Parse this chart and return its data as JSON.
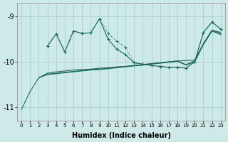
{
  "xlabel": "Humidex (Indice chaleur)",
  "background_color": "#ceeae8",
  "grid_color": "#aacfcc",
  "line_color": "#1a6b5a",
  "xlim": [
    -0.5,
    23.5
  ],
  "ylim": [
    -11.3,
    -8.7
  ],
  "yticks": [
    -11,
    -10,
    -9
  ],
  "xticks": [
    0,
    1,
    2,
    3,
    4,
    5,
    6,
    7,
    8,
    9,
    10,
    11,
    12,
    13,
    14,
    15,
    16,
    17,
    18,
    19,
    20,
    21,
    22,
    23
  ],
  "series": {
    "curve_x": [
      0,
      1,
      2,
      3,
      4,
      5,
      6,
      7,
      8,
      9,
      10,
      11,
      12,
      13,
      14,
      15,
      16,
      17,
      18,
      19,
      20,
      21,
      22,
      23
    ],
    "curve_y": [
      -11.05,
      -10.65,
      -10.35,
      -10.25,
      -10.22,
      -10.2,
      -10.18,
      -10.17,
      -10.16,
      -10.14,
      -10.13,
      -10.11,
      -10.1,
      -10.08,
      -10.06,
      -10.04,
      -10.02,
      -10.0,
      -9.98,
      -9.97,
      -9.96,
      -9.6,
      -9.3,
      -9.35
    ],
    "flat1_x": [
      2,
      3,
      4,
      5,
      6,
      7,
      8,
      9,
      10,
      11,
      12,
      13,
      14,
      15,
      16,
      17,
      18,
      19,
      20,
      21,
      22,
      23
    ],
    "flat1_y": [
      -10.35,
      -10.27,
      -10.25,
      -10.23,
      -10.21,
      -10.19,
      -10.17,
      -10.16,
      -10.14,
      -10.12,
      -10.1,
      -10.08,
      -10.06,
      -10.04,
      -10.02,
      -10.0,
      -9.98,
      -10.06,
      -9.98,
      -9.6,
      -9.3,
      -9.38
    ],
    "flat2_x": [
      2,
      3,
      4,
      5,
      6,
      7,
      8,
      9,
      10,
      11,
      12,
      13,
      14,
      15,
      16,
      17,
      18,
      19,
      20,
      21,
      22,
      23
    ],
    "flat2_y": [
      -10.35,
      -10.28,
      -10.26,
      -10.24,
      -10.22,
      -10.2,
      -10.18,
      -10.17,
      -10.15,
      -10.13,
      -10.11,
      -10.09,
      -10.07,
      -10.05,
      -10.03,
      -10.01,
      -9.99,
      -10.07,
      -10.0,
      -9.62,
      -9.32,
      -9.4
    ],
    "upper_dotted_x": [
      3,
      4,
      5,
      6,
      7,
      8,
      9,
      10,
      11,
      12,
      13,
      14,
      15,
      16,
      17,
      18,
      19,
      20,
      21,
      22,
      23
    ],
    "upper_dotted_y": [
      -9.65,
      -9.38,
      -9.78,
      -9.32,
      -9.37,
      -9.36,
      -9.05,
      -9.37,
      -9.55,
      -9.68,
      -10.02,
      -10.05,
      -10.08,
      -10.1,
      -10.12,
      -10.12,
      -10.14,
      -10.0,
      -9.35,
      -9.12,
      -9.28
    ],
    "upper_solid_x": [
      3,
      4,
      5,
      6,
      7,
      8,
      9,
      10,
      11,
      12,
      13,
      14,
      15,
      16,
      17,
      18,
      19,
      20,
      21,
      22,
      23
    ],
    "upper_solid_y": [
      -9.65,
      -9.38,
      -9.78,
      -9.32,
      -9.37,
      -9.36,
      -9.05,
      -9.5,
      -9.72,
      -9.84,
      -10.02,
      -10.05,
      -10.08,
      -10.1,
      -10.12,
      -10.12,
      -10.14,
      -10.0,
      -9.35,
      -9.12,
      -9.28
    ]
  }
}
